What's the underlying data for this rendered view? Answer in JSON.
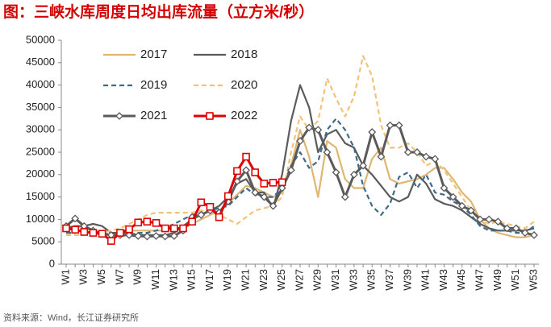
{
  "chart_data": {
    "type": "line",
    "title": "图：三峡水库周度日均出库流量（立方米/秒）",
    "source": "资料来源：Wind，长江证券研究所",
    "categories": [
      "W1",
      null,
      "W3",
      null,
      "W5",
      null,
      "W7",
      null,
      "W9",
      null,
      "W11",
      null,
      "W13",
      null,
      "W15",
      null,
      "W17",
      null,
      "W19",
      null,
      "W21",
      null,
      "W23",
      null,
      "W25",
      null,
      "W27",
      null,
      "W29",
      null,
      "W31",
      null,
      "W33",
      null,
      "W35",
      null,
      "W37",
      null,
      "W39",
      null,
      "W41",
      null,
      "W43",
      null,
      "W45",
      null,
      "W47",
      null,
      "W49",
      null,
      "W51",
      null,
      "W53"
    ],
    "ylim": [
      0,
      50000
    ],
    "yticks": [
      0,
      5000,
      10000,
      15000,
      20000,
      25000,
      30000,
      35000,
      40000,
      45000,
      50000
    ],
    "legend": "upper left",
    "series": [
      {
        "name": "2017",
        "color": "#dfb672",
        "dash": false,
        "marker": "none",
        "values": [
          8000,
          8500,
          8000,
          7500,
          7000,
          6500,
          7000,
          7500,
          7500,
          7500,
          7500,
          7500,
          7500,
          8000,
          9000,
          10000,
          11000,
          12000,
          13500,
          15500,
          17500,
          17000,
          16000,
          15000,
          16000,
          22000,
          30000,
          24000,
          15000,
          27500,
          26000,
          19000,
          17000,
          17000,
          23500,
          26000,
          19000,
          18000,
          18500,
          19000,
          20000,
          21500,
          21500,
          19000,
          16000,
          14000,
          10000,
          8000,
          7000,
          6500,
          6000,
          6000,
          6500
        ]
      },
      {
        "name": "2018",
        "color": "#5b5b5b",
        "dash": false,
        "marker": "none",
        "values": [
          8000,
          8500,
          8500,
          9000,
          8500,
          7000,
          7000,
          7000,
          6500,
          6500,
          6500,
          6500,
          7000,
          8500,
          10000,
          11000,
          12000,
          13000,
          15000,
          18000,
          19000,
          16000,
          16000,
          12500,
          20000,
          32000,
          40000,
          35000,
          25000,
          29000,
          30000,
          27000,
          26000,
          22000,
          20000,
          17500,
          15000,
          14000,
          15000,
          20000,
          18000,
          14500,
          13500,
          13000,
          12000,
          10500,
          9000,
          8000,
          7500,
          7500,
          7500,
          7500,
          8000
        ]
      },
      {
        "name": "2019",
        "color": "#3d6b8c",
        "dash": true,
        "marker": "none",
        "values": [
          7000,
          7000,
          7500,
          7500,
          7000,
          6500,
          6500,
          6500,
          7000,
          7000,
          7500,
          8000,
          9000,
          10000,
          11000,
          11500,
          12000,
          12500,
          13000,
          15000,
          17000,
          15500,
          15000,
          15000,
          17000,
          22000,
          25000,
          21500,
          23000,
          30000,
          32500,
          30000,
          26000,
          17500,
          13000,
          11000,
          13500,
          19500,
          20500,
          17000,
          20000,
          16000,
          15500,
          14000,
          13000,
          11000,
          8500,
          7500,
          7500,
          7500,
          7000,
          7000,
          8500
        ]
      },
      {
        "name": "2020",
        "color": "#f2c27a",
        "dash": true,
        "marker": "none",
        "values": [
          6500,
          6500,
          6500,
          7000,
          7000,
          7500,
          8000,
          9000,
          10000,
          11000,
          11500,
          11500,
          11500,
          11500,
          11500,
          12000,
          11500,
          11000,
          10000,
          9000,
          10500,
          12000,
          12500,
          13000,
          15000,
          25000,
          33000,
          30000,
          32000,
          41500,
          37000,
          33000,
          37500,
          46500,
          42000,
          31000,
          26000,
          26000,
          27000,
          25000,
          22000,
          23000,
          21000,
          18000,
          15000,
          12000,
          10000,
          9000,
          9500,
          9000,
          8500,
          8000,
          9500
        ]
      },
      {
        "name": "2021",
        "color": "#5a5a5a",
        "dash": false,
        "marker": "diamond",
        "values": [
          8500,
          10200,
          8500,
          7500,
          6800,
          6500,
          6500,
          6500,
          6300,
          6200,
          6300,
          6200,
          6300,
          7500,
          10500,
          11000,
          12000,
          11500,
          14000,
          18500,
          21000,
          16000,
          15000,
          13000,
          17000,
          21000,
          27500,
          30500,
          30000,
          25000,
          20500,
          15000,
          20000,
          22000,
          29500,
          24000,
          31000,
          31000,
          25000,
          25000,
          24000,
          23500,
          17000,
          15000,
          13000,
          12000,
          10000,
          10000,
          9500,
          8000,
          8000,
          7000,
          6500
        ]
      },
      {
        "name": "2022",
        "color": "#e00000",
        "dash": false,
        "marker": "square",
        "values": [
          8000,
          7700,
          7200,
          7000,
          6800,
          5200,
          7000,
          7800,
          9300,
          9500,
          9200,
          8000,
          8000,
          8000,
          9500,
          13800,
          12800,
          10500,
          15200,
          20800,
          24000,
          20500,
          18000,
          18200,
          18300,
          null,
          null,
          null,
          null,
          null,
          null,
          null,
          null,
          null,
          null,
          null,
          null,
          null,
          null,
          null,
          null,
          null,
          null,
          null,
          null,
          null,
          null,
          null,
          null,
          null,
          null,
          null,
          null
        ]
      }
    ]
  }
}
